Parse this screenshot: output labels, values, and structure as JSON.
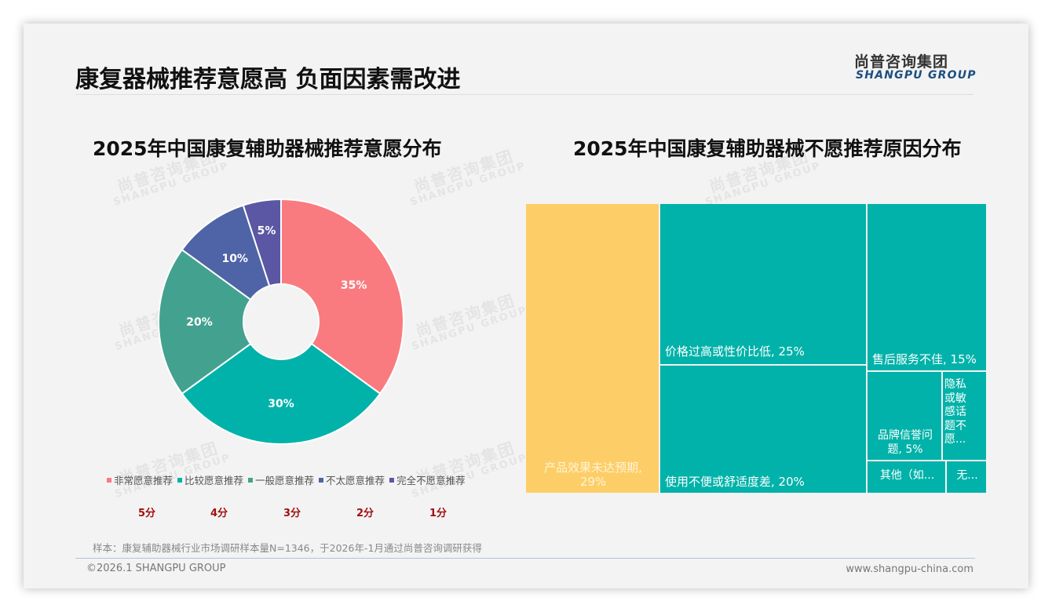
{
  "header": {
    "page_title": "康复器械推荐意愿高 负面因素需改进",
    "logo_cn": "尚普咨询集团",
    "logo_en": "SHANGPU GROUP"
  },
  "watermark": {
    "cn": "尚普咨询集团",
    "en": "SHANGPU GROUP"
  },
  "colors": {
    "background": "#f3f3f3",
    "pink": "#f97b7f",
    "teal": "#00b2a9",
    "green": "#43a28f",
    "blue": "#4f64a6",
    "purple": "#5b57a4",
    "yellow": "#fdce68",
    "score_red": "#a01010"
  },
  "left_chart": {
    "title": "2025年中国康复辅助器械推荐意愿分布",
    "legend": [
      {
        "label": "非常愿意推荐",
        "color": "#f97b7f"
      },
      {
        "label": "比较愿意推荐",
        "color": "#00b2a9"
      },
      {
        "label": "一般愿意推荐",
        "color": "#43a28f"
      },
      {
        "label": "不太愿意推荐",
        "color": "#4f64a6"
      },
      {
        "label": "完全不愿意推荐",
        "color": "#5b57a4"
      }
    ],
    "scores": [
      "5分",
      "4分",
      "3分",
      "2分",
      "1分"
    ]
  },
  "right_chart": {
    "title": "2025年中国康复辅助器械不愿推荐原因分布",
    "tiles": [
      {
        "label": "产品效果未达预期, 29%"
      },
      {
        "label": "价格过高或性价比低, 25%"
      },
      {
        "label": "使用不便或舒适度差, 20%"
      },
      {
        "label": "售后服务不佳, 15%"
      },
      {
        "label": "品牌信誉问题, 5%"
      },
      {
        "label": "隐私或敏感话题不愿..."
      },
      {
        "label": "其他（如..."
      },
      {
        "label": "无..."
      }
    ]
  },
  "footer": {
    "source": "样本：康复辅助器械行业市场调研样本量N=1346，于2026年-1月通过尚普咨询调研获得",
    "copyright": "©2026.1 SHANGPU GROUP",
    "website": "www.shangpu-china.com"
  },
  "chart_data": [
    {
      "type": "pie",
      "title": "2025年中国康复辅助器械推荐意愿分布",
      "categories": [
        "非常愿意推荐",
        "比较愿意推荐",
        "一般愿意推荐",
        "不太愿意推荐",
        "完全不愿意推荐"
      ],
      "values": [
        35,
        30,
        20,
        10,
        5
      ],
      "labels": [
        "35%",
        "30%",
        "20%",
        "10%",
        "5%"
      ],
      "scores": [
        "5分",
        "4分",
        "3分",
        "2分",
        "1分"
      ],
      "colors": [
        "#f97b7f",
        "#00b2a9",
        "#43a28f",
        "#4f64a6",
        "#5b57a4"
      ],
      "donut": true,
      "legend_position": "bottom"
    },
    {
      "type": "treemap",
      "title": "2025年中国康复辅助器械不愿推荐原因分布",
      "categories": [
        "产品效果未达预期",
        "价格过高或性价比低",
        "使用不便或舒适度差",
        "售后服务不佳",
        "品牌信誉问题",
        "隐私或敏感话题不愿...",
        "其他（如...",
        "无..."
      ],
      "values": [
        29,
        25,
        20,
        15,
        5,
        3,
        2,
        1
      ],
      "value_labels": [
        "29%",
        "25%",
        "20%",
        "15%",
        "5%",
        "",
        "",
        ""
      ],
      "colors": [
        "#fdce68",
        "#00b2a9",
        "#00b2a9",
        "#00b2a9",
        "#00b2a9",
        "#00b2a9",
        "#00b2a9",
        "#00b2a9"
      ]
    }
  ]
}
